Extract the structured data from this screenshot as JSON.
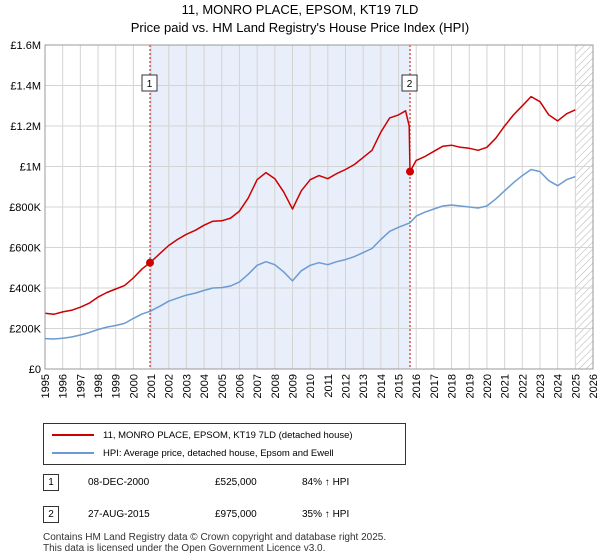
{
  "header": {
    "title": "11, MONRO PLACE, EPSOM, KT19 7LD",
    "subtitle": "Price paid vs. HM Land Registry's House Price Index (HPI)"
  },
  "chart_data": {
    "type": "line",
    "xlim": [
      1995,
      2026
    ],
    "ylim": [
      0,
      1600000
    ],
    "x_ticks": [
      "1995",
      "1996",
      "1997",
      "1998",
      "1999",
      "2000",
      "2001",
      "2002",
      "2003",
      "2004",
      "2005",
      "2006",
      "2007",
      "2008",
      "2009",
      "2010",
      "2011",
      "2012",
      "2013",
      "2014",
      "2015",
      "2016",
      "2017",
      "2018",
      "2019",
      "2020",
      "2021",
      "2022",
      "2023",
      "2024",
      "2025",
      "2026"
    ],
    "y_ticks": [
      {
        "value": 0,
        "label": "£0"
      },
      {
        "value": 200000,
        "label": "£200K"
      },
      {
        "value": 400000,
        "label": "£400K"
      },
      {
        "value": 600000,
        "label": "£600K"
      },
      {
        "value": 800000,
        "label": "£800K"
      },
      {
        "value": 1000000,
        "label": "£1M"
      },
      {
        "value": 1200000,
        "label": "£1.2M"
      },
      {
        "value": 1400000,
        "label": "£1.4M"
      },
      {
        "value": 1600000,
        "label": "£1.6M"
      }
    ],
    "grid": true,
    "shaded_range": [
      2000.94,
      2015.65
    ],
    "hatched_from": 2025.0,
    "colors": {
      "property": "#cc0000",
      "hpi": "#6b9bd2",
      "shade": "#e8eefa",
      "marker_line": "#cc0000"
    },
    "series": [
      {
        "name": "11, MONRO PLACE, EPSOM, KT19 7LD (detached house)",
        "color": "#cc0000",
        "points": [
          [
            1995.0,
            275000
          ],
          [
            1995.5,
            270000
          ],
          [
            1996.0,
            282000
          ],
          [
            1996.5,
            290000
          ],
          [
            1997.0,
            305000
          ],
          [
            1997.5,
            325000
          ],
          [
            1998.0,
            355000
          ],
          [
            1998.5,
            378000
          ],
          [
            1999.0,
            395000
          ],
          [
            1999.5,
            412000
          ],
          [
            2000.0,
            450000
          ],
          [
            2000.5,
            495000
          ],
          [
            2000.94,
            525000
          ],
          [
            2001.5,
            570000
          ],
          [
            2002.0,
            610000
          ],
          [
            2002.5,
            640000
          ],
          [
            2003.0,
            665000
          ],
          [
            2003.5,
            685000
          ],
          [
            2004.0,
            710000
          ],
          [
            2004.5,
            730000
          ],
          [
            2005.0,
            732000
          ],
          [
            2005.5,
            745000
          ],
          [
            2006.0,
            780000
          ],
          [
            2006.5,
            845000
          ],
          [
            2007.0,
            935000
          ],
          [
            2007.5,
            970000
          ],
          [
            2008.0,
            940000
          ],
          [
            2008.5,
            875000
          ],
          [
            2009.0,
            790000
          ],
          [
            2009.5,
            880000
          ],
          [
            2010.0,
            935000
          ],
          [
            2010.5,
            955000
          ],
          [
            2011.0,
            940000
          ],
          [
            2011.5,
            965000
          ],
          [
            2012.0,
            985000
          ],
          [
            2012.5,
            1010000
          ],
          [
            2013.0,
            1045000
          ],
          [
            2013.5,
            1080000
          ],
          [
            2014.0,
            1170000
          ],
          [
            2014.5,
            1240000
          ],
          [
            2015.0,
            1255000
          ],
          [
            2015.4,
            1275000
          ],
          [
            2015.6,
            1200000
          ],
          [
            2015.65,
            975000
          ],
          [
            2016.0,
            1030000
          ],
          [
            2016.5,
            1050000
          ],
          [
            2017.0,
            1075000
          ],
          [
            2017.5,
            1100000
          ],
          [
            2018.0,
            1105000
          ],
          [
            2018.5,
            1095000
          ],
          [
            2019.0,
            1090000
          ],
          [
            2019.5,
            1080000
          ],
          [
            2020.0,
            1095000
          ],
          [
            2020.5,
            1140000
          ],
          [
            2021.0,
            1200000
          ],
          [
            2021.5,
            1255000
          ],
          [
            2022.0,
            1300000
          ],
          [
            2022.5,
            1345000
          ],
          [
            2023.0,
            1320000
          ],
          [
            2023.5,
            1255000
          ],
          [
            2024.0,
            1225000
          ],
          [
            2024.5,
            1260000
          ],
          [
            2025.0,
            1280000
          ]
        ]
      },
      {
        "name": "HPI: Average price, detached house, Epsom and Ewell",
        "color": "#6b9bd2",
        "points": [
          [
            1995.0,
            150000
          ],
          [
            1995.5,
            148000
          ],
          [
            1996.0,
            152000
          ],
          [
            1996.5,
            158000
          ],
          [
            1997.0,
            168000
          ],
          [
            1997.5,
            180000
          ],
          [
            1998.0,
            195000
          ],
          [
            1998.5,
            207000
          ],
          [
            1999.0,
            215000
          ],
          [
            1999.5,
            225000
          ],
          [
            2000.0,
            250000
          ],
          [
            2000.5,
            272000
          ],
          [
            2000.94,
            285000
          ],
          [
            2001.5,
            310000
          ],
          [
            2002.0,
            335000
          ],
          [
            2002.5,
            350000
          ],
          [
            2003.0,
            365000
          ],
          [
            2003.5,
            375000
          ],
          [
            2004.0,
            388000
          ],
          [
            2004.5,
            400000
          ],
          [
            2005.0,
            402000
          ],
          [
            2005.5,
            410000
          ],
          [
            2006.0,
            430000
          ],
          [
            2006.5,
            468000
          ],
          [
            2007.0,
            512000
          ],
          [
            2007.5,
            530000
          ],
          [
            2008.0,
            515000
          ],
          [
            2008.5,
            480000
          ],
          [
            2009.0,
            435000
          ],
          [
            2009.5,
            485000
          ],
          [
            2010.0,
            512000
          ],
          [
            2010.5,
            525000
          ],
          [
            2011.0,
            515000
          ],
          [
            2011.5,
            530000
          ],
          [
            2012.0,
            540000
          ],
          [
            2012.5,
            555000
          ],
          [
            2013.0,
            575000
          ],
          [
            2013.5,
            595000
          ],
          [
            2014.0,
            640000
          ],
          [
            2014.5,
            680000
          ],
          [
            2015.0,
            700000
          ],
          [
            2015.65,
            722000
          ],
          [
            2016.0,
            755000
          ],
          [
            2016.5,
            775000
          ],
          [
            2017.0,
            790000
          ],
          [
            2017.5,
            805000
          ],
          [
            2018.0,
            810000
          ],
          [
            2018.5,
            805000
          ],
          [
            2019.0,
            800000
          ],
          [
            2019.5,
            795000
          ],
          [
            2020.0,
            805000
          ],
          [
            2020.5,
            840000
          ],
          [
            2021.0,
            880000
          ],
          [
            2021.5,
            920000
          ],
          [
            2022.0,
            955000
          ],
          [
            2022.5,
            985000
          ],
          [
            2023.0,
            975000
          ],
          [
            2023.5,
            930000
          ],
          [
            2024.0,
            905000
          ],
          [
            2024.5,
            935000
          ],
          [
            2025.0,
            950000
          ]
        ]
      }
    ],
    "annotations": [
      {
        "label": "1",
        "x": 2000.94,
        "y": 525000
      },
      {
        "label": "2",
        "x": 2015.65,
        "y": 975000
      }
    ]
  },
  "legend": {
    "property_label": "11, MONRO PLACE, EPSOM, KT19 7LD (detached house)",
    "hpi_label": "HPI: Average price, detached house, Epsom and Ewell"
  },
  "transactions": [
    {
      "num": "1",
      "date": "08-DEC-2000",
      "price": "£525,000",
      "hpi": "84% ↑ HPI"
    },
    {
      "num": "2",
      "date": "27-AUG-2015",
      "price": "£975,000",
      "hpi": "35% ↑ HPI"
    }
  ],
  "footer": {
    "line1": "Contains HM Land Registry data © Crown copyright and database right 2025.",
    "line2": "This data is licensed under the Open Government Licence v3.0."
  }
}
